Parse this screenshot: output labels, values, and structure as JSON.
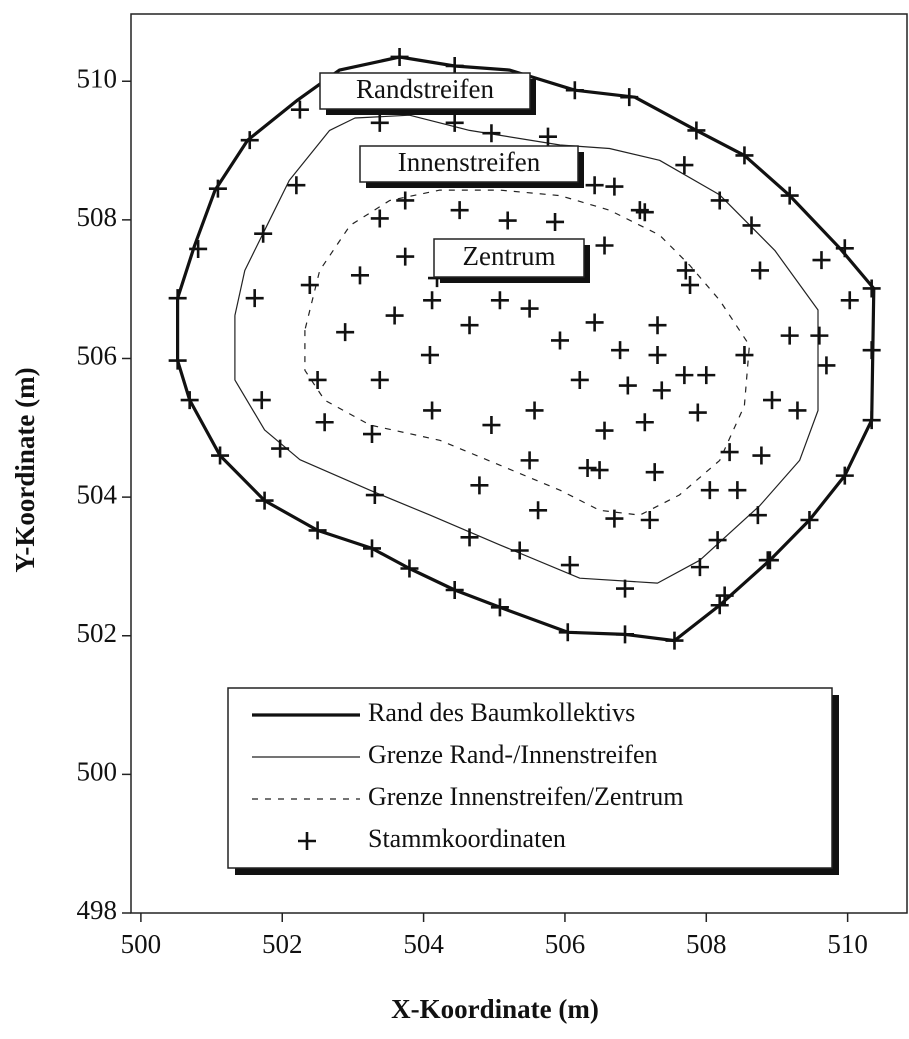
{
  "chart_data": {
    "type": "scatter",
    "xlabel": "X-Koordinate (m)",
    "ylabel": "Y-Koordinate (m)",
    "xlim": [
      499.86,
      510.84
    ],
    "ylim": [
      498,
      510.97
    ],
    "xticks": [
      500,
      502,
      504,
      506,
      508,
      510
    ],
    "yticks": [
      498,
      500,
      502,
      504,
      506,
      508,
      510
    ],
    "grid": false,
    "legend": "lower center",
    "annotations": [
      "Randstreifen",
      "Innenstreifen",
      "Zentrum"
    ],
    "series": [
      {
        "name": "Rand des Baumkollektivs",
        "mode": "line",
        "line_style": "solid",
        "line_width": 3.2,
        "color": "#111111",
        "x": [
          500.52,
          500.52,
          500.69,
          501.12,
          501.75,
          502.5,
          503.27,
          503.8,
          504.44,
          505.08,
          506.04,
          506.85,
          507.55,
          508.19,
          508.9,
          509.46,
          509.96,
          510.34,
          510.37,
          509.89,
          509.18,
          508.54,
          507.86,
          506.99,
          506.14,
          505.22,
          504.44,
          503.66,
          502.81,
          502.22,
          501.51,
          501.05,
          500.76,
          500.52
        ],
        "y": [
          506.87,
          505.97,
          505.4,
          504.6,
          503.95,
          503.52,
          503.26,
          502.97,
          502.66,
          502.41,
          502.05,
          502.02,
          501.93,
          502.44,
          503.09,
          503.67,
          504.31,
          505.11,
          507.01,
          507.59,
          508.35,
          508.93,
          509.29,
          509.77,
          509.87,
          510.16,
          510.22,
          510.35,
          510.16,
          509.73,
          509.15,
          508.43,
          507.63,
          506.87
        ]
      },
      {
        "name": "Grenze Rand-/Innenstreifen",
        "mode": "line",
        "line_style": "solid",
        "line_width": 1.2,
        "color": "#222222",
        "x": [
          501.33,
          501.33,
          501.75,
          502.25,
          503.24,
          504.09,
          505.08,
          506.21,
          507.31,
          507.91,
          508.76,
          509.32,
          509.58,
          509.58,
          508.97,
          508.19,
          507.34,
          506.63,
          505.93,
          504.65,
          503.8,
          503.03,
          502.67,
          502.1,
          501.75,
          501.47,
          501.33
        ],
        "y": [
          506.62,
          505.69,
          504.97,
          504.54,
          504.1,
          503.74,
          503.31,
          502.83,
          502.76,
          503.09,
          503.88,
          504.53,
          505.25,
          506.7,
          507.56,
          508.36,
          508.86,
          509.03,
          509.08,
          509.29,
          509.51,
          509.47,
          509.29,
          508.57,
          507.85,
          507.27,
          506.62
        ]
      },
      {
        "name": "Grenze Innenstreifen/Zentrum",
        "mode": "line",
        "line_style": "dashed",
        "line_width": 1.2,
        "color": "#222222",
        "x": [
          502.32,
          502.32,
          502.6,
          503.24,
          504.23,
          505.08,
          505.93,
          506.49,
          507.06,
          507.62,
          508.19,
          508.54,
          508.61,
          508.19,
          507.77,
          507.34,
          506.63,
          505.93,
          505.08,
          504.23,
          503.52,
          502.96,
          502.53,
          502.32
        ],
        "y": [
          506.41,
          505.83,
          505.4,
          505.04,
          504.82,
          504.46,
          504.1,
          503.81,
          503.74,
          504.03,
          504.53,
          505.32,
          506.19,
          506.84,
          507.34,
          507.78,
          508.14,
          508.35,
          508.43,
          508.43,
          508.28,
          507.92,
          507.27,
          506.41
        ]
      },
      {
        "name": "Stammkoordinaten",
        "mode": "marker",
        "marker": "+",
        "color": "#111111",
        "x": [
          500.52,
          500.52,
          500.69,
          501.12,
          501.75,
          502.5,
          503.27,
          503.8,
          504.44,
          505.08,
          506.04,
          506.85,
          507.55,
          508.19,
          508.9,
          509.46,
          509.96,
          510.34,
          510.34,
          510.34,
          509.96,
          509.18,
          508.54,
          507.86,
          506.91,
          506.14,
          504.44,
          503.66,
          502.25,
          501.54,
          501.09,
          500.81,
          501.73,
          502.2,
          503.38,
          504.44,
          504.96,
          505.76,
          506.42,
          507.06,
          507.69,
          508.19,
          508.64,
          508.76,
          509.63,
          510.03,
          509.6,
          509.7,
          509.29,
          508.93,
          508.78,
          508.44,
          508.73,
          508.16,
          507.91,
          508.87,
          508.26,
          506.85,
          506.07,
          505.36,
          504.65,
          503.31,
          501.97,
          501.71,
          501.61,
          502.39,
          503.38,
          503.74,
          504.19,
          504.65,
          505.08,
          505.64,
          505.86,
          506.56,
          506.7,
          507.13,
          507.71,
          507.77,
          507.31,
          507.31,
          506.78,
          506.42,
          505.93,
          505.5,
          505.08,
          504.12,
          503.59,
          503.1,
          502.89,
          502.5,
          503.38,
          504.09,
          504.12,
          504.96,
          505.57,
          506.21,
          506.89,
          507.69,
          507.37,
          507.88,
          508.0,
          508.54,
          509.18,
          506.49,
          505.5,
          504.79,
          505.62,
          506.32,
          506.56,
          507.13,
          507.27,
          506.7,
          507.2,
          508.33,
          508.05,
          502.6,
          503.27,
          503.74,
          504.51,
          505.19,
          504.51
        ],
        "y": [
          506.87,
          505.97,
          505.4,
          504.6,
          503.95,
          503.52,
          503.26,
          502.97,
          502.66,
          502.41,
          502.05,
          502.02,
          501.93,
          502.44,
          503.09,
          503.67,
          504.31,
          505.11,
          506.12,
          507.01,
          507.59,
          508.35,
          508.93,
          509.29,
          509.77,
          509.87,
          510.22,
          510.35,
          509.59,
          509.15,
          508.45,
          507.58,
          507.8,
          508.5,
          509.4,
          509.4,
          509.25,
          509.2,
          508.5,
          508.14,
          508.79,
          508.28,
          507.92,
          507.27,
          507.42,
          506.84,
          506.33,
          505.9,
          505.25,
          505.4,
          504.6,
          504.1,
          503.74,
          503.38,
          502.99,
          503.09,
          502.58,
          502.68,
          503.02,
          503.23,
          503.42,
          504.03,
          504.7,
          505.4,
          506.87,
          507.06,
          508.02,
          507.47,
          507.16,
          506.48,
          507.27,
          507.49,
          507.97,
          507.63,
          508.48,
          508.11,
          507.27,
          507.06,
          506.48,
          506.05,
          506.12,
          506.52,
          506.26,
          506.72,
          506.84,
          506.84,
          506.62,
          507.2,
          506.38,
          505.69,
          505.69,
          506.05,
          505.25,
          505.04,
          505.25,
          505.69,
          505.61,
          505.76,
          505.54,
          505.22,
          505.76,
          506.05,
          506.33,
          504.39,
          504.53,
          504.17,
          503.81,
          504.42,
          504.96,
          505.08,
          504.36,
          503.69,
          503.67,
          504.65,
          504.1,
          505.08,
          504.91,
          508.28,
          508.14,
          507.99,
          507.49
        ]
      }
    ]
  }
}
